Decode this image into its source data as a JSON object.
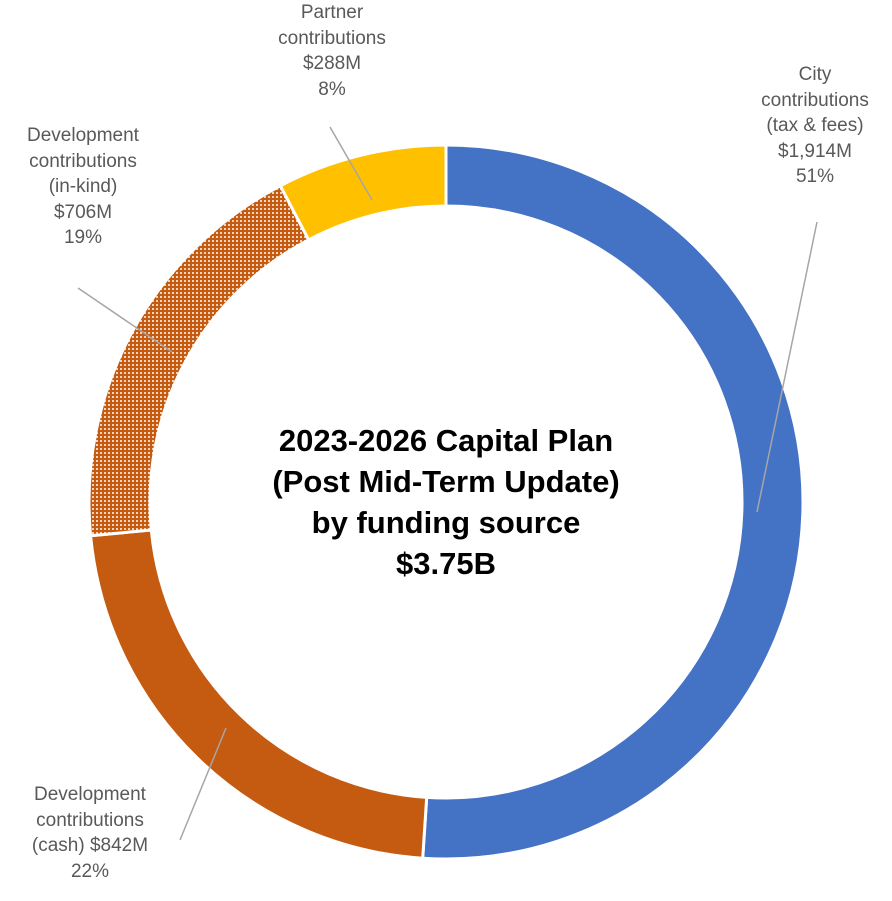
{
  "chart_data": {
    "type": "pie",
    "style": "donut",
    "title_lines": [
      "2023-2026 Capital Plan",
      "(Post Mid-Term Update)",
      "by funding source",
      "$3.75B"
    ],
    "total_label": "$3.75B",
    "start_angle_deg": 0,
    "direction": "clockwise",
    "slices": [
      {
        "key": "city",
        "label_lines": [
          "City",
          "contributions",
          "(tax & fees)",
          "$1,914M",
          "51%"
        ],
        "value": 1914,
        "value_label": "$1,914M",
        "percent_label": "51%",
        "color": "#4472C4",
        "pattern": "solid"
      },
      {
        "key": "dev_cash",
        "label_lines": [
          "Development",
          "contributions",
          "(cash) $842M",
          "22%"
        ],
        "value": 842,
        "value_label": "$842M",
        "percent_label": "22%",
        "color": "#C55A11",
        "pattern": "solid"
      },
      {
        "key": "dev_inkind",
        "label_lines": [
          "Development",
          "contributions",
          "(in-kind)",
          "$706M",
          "19%"
        ],
        "value": 706,
        "value_label": "$706M",
        "percent_label": "19%",
        "color": "#C55A11",
        "pattern": "dotted"
      },
      {
        "key": "partner",
        "label_lines": [
          "Partner",
          "contributions",
          "$288M",
          "8%"
        ],
        "value": 288,
        "value_label": "$288M",
        "percent_label": "8%",
        "color": "#FFC000",
        "pattern": "solid"
      }
    ],
    "leader_line_color": "#A6A6A6",
    "label_text_color": "#595959"
  }
}
